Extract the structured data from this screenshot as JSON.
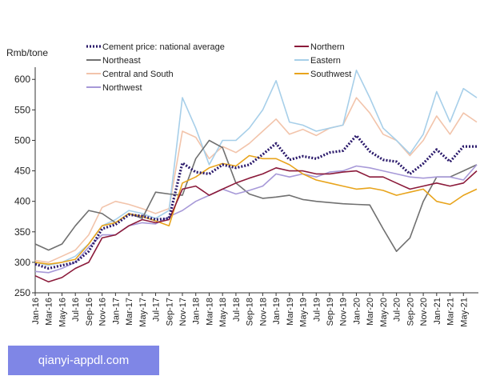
{
  "chart_data": {
    "type": "line",
    "ylabel": "Rmb/tone",
    "ylim": [
      250,
      620
    ],
    "yticks": [
      250,
      300,
      350,
      400,
      450,
      500,
      550,
      600
    ],
    "xlim": [
      "Jan-16",
      "Jul-21"
    ],
    "xticks": [
      "Jan-16",
      "Mar-16",
      "May-16",
      "Jul-16",
      "Sep-16",
      "Nov-16",
      "Jan-17",
      "Mar-17",
      "May-17",
      "Jul-17",
      "Sep-17",
      "Nov-17",
      "Jan-18",
      "Mar-18",
      "May-18",
      "Jul-18",
      "Sep-18",
      "Nov-18",
      "Jan-19",
      "Mar-19",
      "May-19",
      "Jul-19",
      "Sep-19",
      "Nov-19",
      "Jan-20",
      "Mar-20",
      "May-20",
      "Jul-20",
      "Sep-20",
      "Nov-20",
      "Jan-21",
      "Mar-21",
      "May-21"
    ],
    "grid": false,
    "legend_position": "top",
    "series": [
      {
        "name": "Cement price: national average",
        "color": "#2b1a6b",
        "style": "dotted-bold",
        "x": [
          "Jan-16",
          "Mar-16",
          "May-16",
          "Jul-16",
          "Sep-16",
          "Nov-16",
          "Jan-17",
          "Mar-17",
          "May-17",
          "Jul-17",
          "Sep-17",
          "Nov-17",
          "Jan-18",
          "Mar-18",
          "May-18",
          "Jul-18",
          "Sep-18",
          "Nov-18",
          "Jan-19",
          "Mar-19",
          "May-19",
          "Jul-19",
          "Sep-19",
          "Nov-19",
          "Jan-20",
          "Mar-20",
          "May-20",
          "Jul-20",
          "Sep-20",
          "Nov-20",
          "Jan-21",
          "Mar-21",
          "May-21",
          "Jul-21"
        ],
        "values": [
          297,
          290,
          295,
          300,
          318,
          355,
          362,
          378,
          376,
          370,
          372,
          463,
          448,
          445,
          460,
          455,
          460,
          477,
          495,
          468,
          474,
          470,
          480,
          483,
          508,
          482,
          468,
          465,
          445,
          462,
          485,
          465,
          490,
          490
        ]
      },
      {
        "name": "Northeast",
        "color": "#707070",
        "x": [
          "Jan-16",
          "Mar-16",
          "May-16",
          "Jul-16",
          "Sep-16",
          "Nov-16",
          "Jan-17",
          "Mar-17",
          "May-17",
          "Jul-17",
          "Sep-17",
          "Nov-17",
          "Jan-18",
          "Mar-18",
          "May-18",
          "Jul-18",
          "Sep-18",
          "Nov-18",
          "Jan-19",
          "Mar-19",
          "May-19",
          "Jul-19",
          "Sep-19",
          "Nov-19",
          "Jan-20",
          "Mar-20",
          "May-20",
          "Jul-20",
          "Sep-20",
          "Nov-20",
          "Jan-21",
          "Mar-21",
          "May-21",
          "Jul-21"
        ],
        "values": [
          330,
          320,
          330,
          360,
          385,
          380,
          365,
          380,
          372,
          415,
          412,
          410,
          470,
          500,
          488,
          430,
          412,
          405,
          407,
          410,
          403,
          400,
          398,
          396,
          395,
          394,
          355,
          318,
          340,
          400,
          440,
          440,
          450,
          460
        ]
      },
      {
        "name": "Central and South",
        "color": "#f2c4ab",
        "x": [
          "Jan-16",
          "Mar-16",
          "May-16",
          "Jul-16",
          "Sep-16",
          "Nov-16",
          "Jan-17",
          "Mar-17",
          "May-17",
          "Jul-17",
          "Sep-17",
          "Nov-17",
          "Jan-18",
          "Mar-18",
          "May-18",
          "Jul-18",
          "Sep-18",
          "Nov-18",
          "Jan-19",
          "Mar-19",
          "May-19",
          "Jul-19",
          "Sep-19",
          "Nov-19",
          "Jan-20",
          "Mar-20",
          "May-20",
          "Jul-20",
          "Sep-20",
          "Nov-20",
          "Jan-21",
          "Mar-21",
          "May-21",
          "Jul-21"
        ],
        "values": [
          303,
          300,
          310,
          320,
          345,
          390,
          400,
          395,
          388,
          380,
          388,
          515,
          505,
          470,
          490,
          480,
          495,
          515,
          535,
          510,
          518,
          508,
          520,
          525,
          570,
          545,
          510,
          500,
          475,
          500,
          540,
          510,
          545,
          530
        ]
      },
      {
        "name": "Northwest",
        "color": "#a799d8",
        "x": [
          "Jan-16",
          "Mar-16",
          "May-16",
          "Jul-16",
          "Sep-16",
          "Nov-16",
          "Jan-17",
          "Mar-17",
          "May-17",
          "Jul-17",
          "Sep-17",
          "Nov-17",
          "Jan-18",
          "Mar-18",
          "May-18",
          "Jul-18",
          "Sep-18",
          "Nov-18",
          "Jan-19",
          "Mar-19",
          "May-19",
          "Jul-19",
          "Sep-19",
          "Nov-19",
          "Jan-20",
          "Mar-20",
          "May-20",
          "Jul-20",
          "Sep-20",
          "Nov-20",
          "Jan-21",
          "Mar-21",
          "May-21",
          "Jul-21"
        ],
        "values": [
          285,
          283,
          290,
          300,
          325,
          345,
          345,
          360,
          365,
          363,
          375,
          385,
          400,
          410,
          420,
          412,
          418,
          425,
          445,
          440,
          445,
          440,
          448,
          450,
          458,
          455,
          450,
          445,
          440,
          438,
          440,
          440,
          435,
          460
        ]
      },
      {
        "name": "Northern",
        "color": "#8b1a3a",
        "x": [
          "Jan-16",
          "Mar-16",
          "May-16",
          "Jul-16",
          "Sep-16",
          "Nov-16",
          "Jan-17",
          "Mar-17",
          "May-17",
          "Jul-17",
          "Sep-17",
          "Nov-17",
          "Jan-18",
          "Mar-18",
          "May-18",
          "Jul-18",
          "Sep-18",
          "Nov-18",
          "Jan-19",
          "Mar-19",
          "May-19",
          "Jul-19",
          "Sep-19",
          "Nov-19",
          "Jan-20",
          "Mar-20",
          "May-20",
          "Jul-20",
          "Sep-20",
          "Nov-20",
          "Jan-21",
          "Mar-21",
          "May-21",
          "Jul-21"
        ],
        "values": [
          278,
          268,
          275,
          290,
          300,
          340,
          345,
          360,
          370,
          365,
          370,
          420,
          425,
          410,
          420,
          430,
          438,
          445,
          455,
          450,
          450,
          445,
          445,
          448,
          450,
          440,
          440,
          430,
          420,
          425,
          430,
          425,
          430,
          450
        ]
      },
      {
        "name": "Eastern",
        "color": "#a7cfe9",
        "x": [
          "Jan-16",
          "Mar-16",
          "May-16",
          "Jul-16",
          "Sep-16",
          "Nov-16",
          "Jan-17",
          "Mar-17",
          "May-17",
          "Jul-17",
          "Sep-17",
          "Nov-17",
          "Jan-18",
          "Mar-18",
          "May-18",
          "Jul-18",
          "Sep-18",
          "Nov-18",
          "Jan-19",
          "Mar-19",
          "May-19",
          "Jul-19",
          "Sep-19",
          "Nov-19",
          "Jan-20",
          "Mar-20",
          "May-20",
          "Jul-20",
          "Sep-20",
          "Nov-20",
          "Jan-21",
          "Mar-21",
          "May-21",
          "Jul-21"
        ],
        "values": [
          300,
          295,
          300,
          310,
          330,
          360,
          370,
          385,
          380,
          372,
          385,
          570,
          520,
          460,
          500,
          500,
          520,
          550,
          598,
          530,
          525,
          515,
          520,
          525,
          615,
          570,
          520,
          500,
          478,
          510,
          580,
          530,
          585,
          570
        ]
      },
      {
        "name": "Southwest",
        "color": "#e8a41c",
        "x": [
          "Jan-16",
          "Mar-16",
          "May-16",
          "Jul-16",
          "Sep-16",
          "Nov-16",
          "Jan-17",
          "Mar-17",
          "May-17",
          "Jul-17",
          "Sep-17",
          "Nov-17",
          "Jan-18",
          "Mar-18",
          "May-18",
          "Jul-18",
          "Sep-18",
          "Nov-18",
          "Jan-19",
          "Mar-19",
          "May-19",
          "Jul-19",
          "Sep-19",
          "Nov-19",
          "Jan-20",
          "Mar-20",
          "May-20",
          "Jul-20",
          "Sep-20",
          "Nov-20",
          "Jan-21",
          "Mar-21",
          "May-21",
          "Jul-21"
        ],
        "values": [
          300,
          297,
          300,
          305,
          330,
          360,
          365,
          380,
          375,
          368,
          360,
          430,
          440,
          455,
          462,
          458,
          475,
          470,
          470,
          460,
          445,
          435,
          430,
          425,
          420,
          422,
          418,
          410,
          415,
          420,
          400,
          395,
          410,
          420
        ]
      }
    ]
  },
  "watermark": "qianyi-appdl.com"
}
